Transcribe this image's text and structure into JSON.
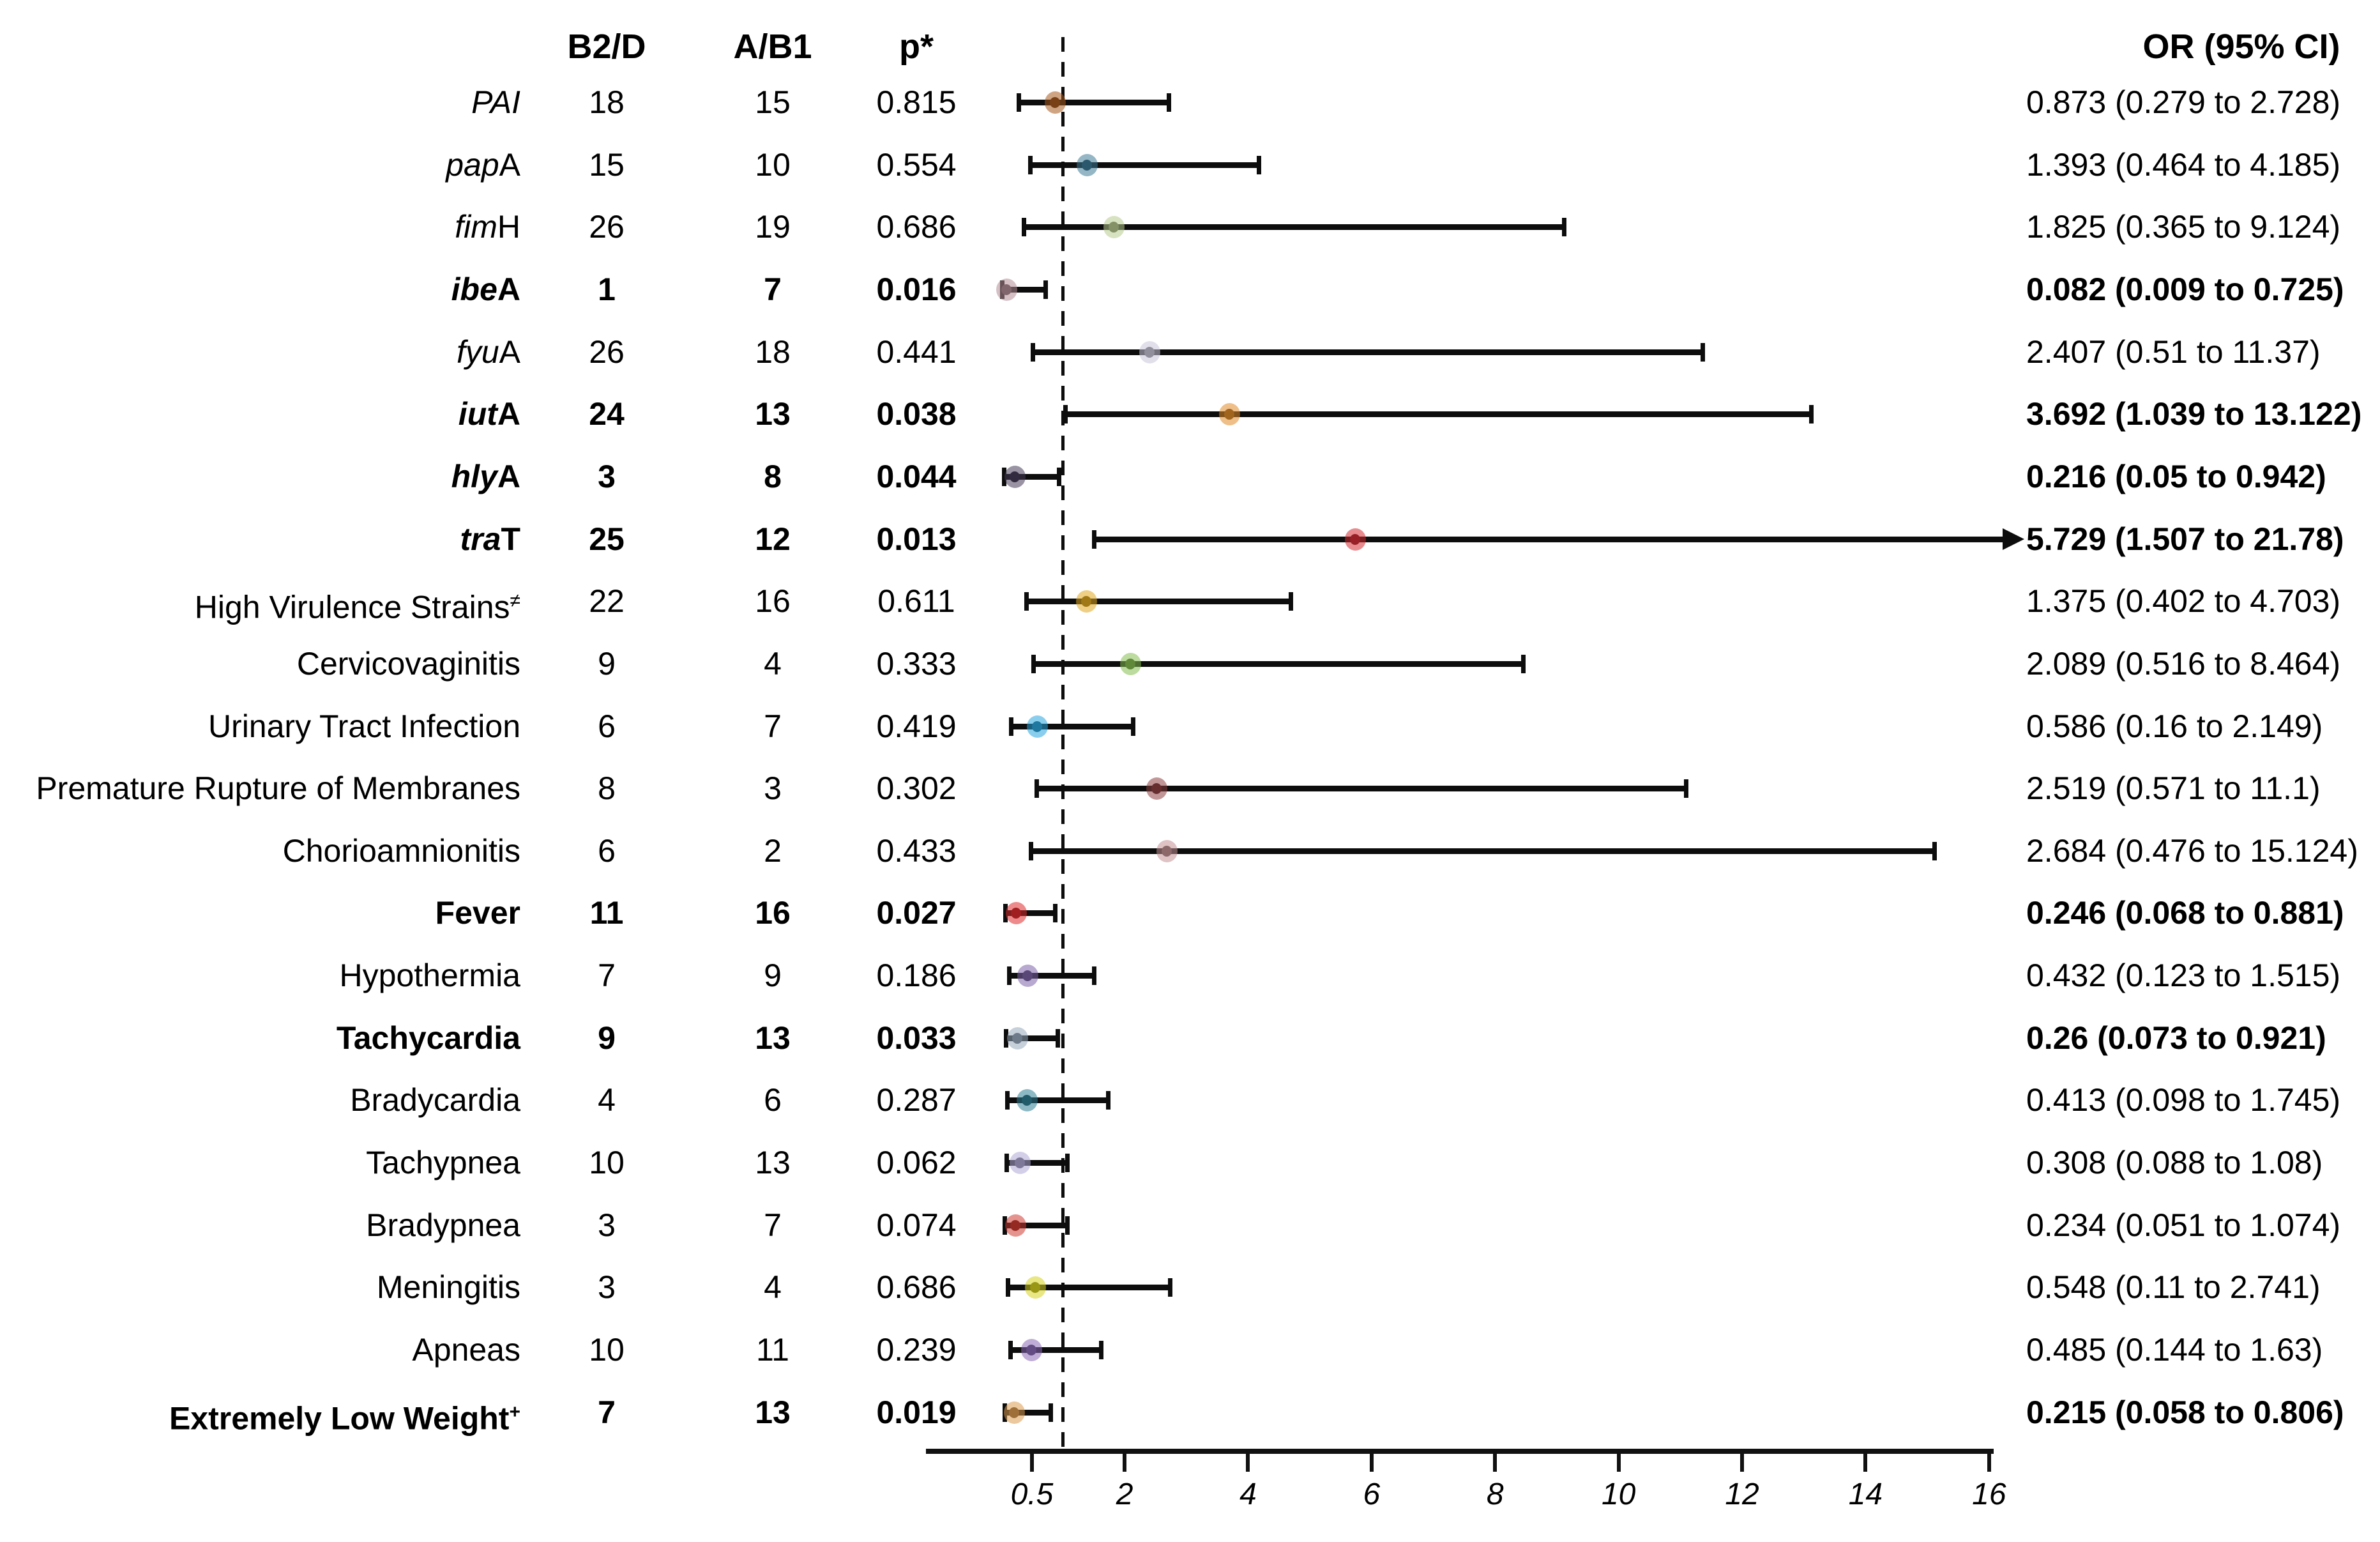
{
  "header": {
    "col_b2d": "B2/D",
    "col_ab1": "A/B1",
    "col_p": "p*",
    "col_or": "OR (95% CI)"
  },
  "axis": {
    "tick_values": [
      0.5,
      2,
      4,
      6,
      8,
      10,
      12,
      14,
      16
    ],
    "tick_labels": [
      "0.5",
      "2",
      "4",
      "6",
      "8",
      "10",
      "12",
      "14",
      "16"
    ],
    "ref_line_value": 1,
    "scale": "linear"
  },
  "chart_data": {
    "type": "forest",
    "columns": [
      "label",
      "B2/D",
      "A/B1",
      "p*",
      "OR (95% CI)"
    ],
    "x_axis": {
      "ticks": [
        0.5,
        2,
        4,
        6,
        8,
        10,
        12,
        14,
        16
      ],
      "reference_line": 1,
      "arrow_cutoff": 16
    },
    "rows": [
      {
        "label_italic": "PAI",
        "label_plain": "",
        "label_sup": "",
        "b2d": "18",
        "ab1": "15",
        "p": "0.815",
        "or": 0.873,
        "lo": 0.279,
        "hi": 2.728,
        "or_text": "0.873 (0.279 to 2.728)",
        "bold": false,
        "arrow": false,
        "color": "#A8591E"
      },
      {
        "label_italic": "pap",
        "label_plain": "A",
        "label_sup": "",
        "b2d": "15",
        "ab1": "10",
        "p": "0.554",
        "or": 1.393,
        "lo": 0.464,
        "hi": 4.185,
        "or_text": "1.393 (0.464 to 4.185)",
        "bold": false,
        "arrow": false,
        "color": "#3C7A96"
      },
      {
        "label_italic": "fim",
        "label_plain": "H",
        "label_sup": "",
        "b2d": "26",
        "ab1": "19",
        "p": "0.686",
        "or": 1.825,
        "lo": 0.365,
        "hi": 9.124,
        "or_text": "1.825 (0.365 to 9.124)",
        "bold": false,
        "arrow": false,
        "color": "#B7CA8E"
      },
      {
        "label_italic": "ibe",
        "label_plain": "A",
        "label_sup": "",
        "b2d": "1",
        "ab1": "7",
        "p": "0.016",
        "or": 0.082,
        "lo": 0.009,
        "hi": 0.725,
        "or_text": "0.082 (0.009 to 0.725)",
        "bold": true,
        "arrow": false,
        "color": "#B28E96"
      },
      {
        "label_italic": "fyu",
        "label_plain": "A",
        "label_sup": "",
        "b2d": "26",
        "ab1": "18",
        "p": "0.441",
        "or": 2.407,
        "lo": 0.51,
        "hi": 11.37,
        "or_text": "2.407 (0.51 to 11.37)",
        "bold": false,
        "arrow": false,
        "color": "#C9C6D8"
      },
      {
        "label_italic": "iut",
        "label_plain": "A",
        "label_sup": "",
        "b2d": "24",
        "ab1": "13",
        "p": "0.038",
        "or": 3.692,
        "lo": 1.039,
        "hi": 13.122,
        "or_text": "3.692 (1.039 to 13.122)",
        "bold": true,
        "arrow": false,
        "color": "#E08B28"
      },
      {
        "label_italic": "hly",
        "label_plain": "A",
        "label_sup": "",
        "b2d": "3",
        "ab1": "8",
        "p": "0.044",
        "or": 0.216,
        "lo": 0.05,
        "hi": 0.942,
        "or_text": "0.216 (0.05 to 0.942)",
        "bold": true,
        "arrow": false,
        "color": "#463B57"
      },
      {
        "label_italic": "tra",
        "label_plain": "T",
        "label_sup": "",
        "b2d": "25",
        "ab1": "12",
        "p": "0.013",
        "or": 5.729,
        "lo": 1.507,
        "hi": 21.78,
        "or_text": "5.729 (1.507 to 21.78)",
        "bold": true,
        "arrow": true,
        "color": "#D32B33"
      },
      {
        "label_italic": "",
        "label_plain": "High Virulence Strains",
        "label_sup": "≠",
        "b2d": "22",
        "ab1": "16",
        "p": "0.611",
        "or": 1.375,
        "lo": 0.402,
        "hi": 4.703,
        "or_text": "1.375 (0.402 to 4.703)",
        "bold": false,
        "arrow": false,
        "color": "#E0A71E"
      },
      {
        "label_italic": "",
        "label_plain": "Cervicovaginitis",
        "label_sup": "",
        "b2d": "9",
        "ab1": "4",
        "p": "0.333",
        "or": 2.089,
        "lo": 0.516,
        "hi": 8.464,
        "or_text": "2.089 (0.516 to 8.464)",
        "bold": false,
        "arrow": false,
        "color": "#85BE50"
      },
      {
        "label_italic": "",
        "label_plain": "Urinary Tract Infection",
        "label_sup": "",
        "b2d": "6",
        "ab1": "7",
        "p": "0.419",
        "or": 0.586,
        "lo": 0.16,
        "hi": 2.149,
        "or_text": "0.586 (0.16 to 2.149)",
        "bold": false,
        "arrow": false,
        "color": "#2AA6DE"
      },
      {
        "label_italic": "",
        "label_plain": "Premature Rupture of Membranes",
        "label_sup": "",
        "b2d": "8",
        "ab1": "3",
        "p": "0.302",
        "or": 2.519,
        "lo": 0.571,
        "hi": 11.1,
        "or_text": "2.519 (0.571 to 11.1)",
        "bold": false,
        "arrow": false,
        "color": "#8E4041"
      },
      {
        "label_italic": "",
        "label_plain": "Chorioamnionitis",
        "label_sup": "",
        "b2d": "6",
        "ab1": "2",
        "p": "0.433",
        "or": 2.684,
        "lo": 0.476,
        "hi": 15.124,
        "or_text": "2.684 (0.476 to 15.124)",
        "bold": false,
        "arrow": false,
        "color": "#C29093"
      },
      {
        "label_italic": "",
        "label_plain": "Fever",
        "label_sup": "",
        "b2d": "11",
        "ab1": "16",
        "p": "0.027",
        "or": 0.246,
        "lo": 0.068,
        "hi": 0.881,
        "or_text": "0.246 (0.068 to 0.881)",
        "bold": true,
        "arrow": false,
        "color": "#DF2A2C"
      },
      {
        "label_italic": "",
        "label_plain": "Hypothermia",
        "label_sup": "",
        "b2d": "7",
        "ab1": "9",
        "p": "0.186",
        "or": 0.432,
        "lo": 0.123,
        "hi": 1.515,
        "or_text": "0.432 (0.123 to 1.515)",
        "bold": false,
        "arrow": false,
        "color": "#7C62A7"
      },
      {
        "label_italic": "",
        "label_plain": "Tachycardia",
        "label_sup": "",
        "b2d": "9",
        "ab1": "13",
        "p": "0.033",
        "or": 0.26,
        "lo": 0.073,
        "hi": 0.921,
        "or_text": "0.26 (0.073 to 0.921)",
        "bold": true,
        "arrow": false,
        "color": "#97A9BE"
      },
      {
        "label_italic": "",
        "label_plain": "Bradycardia",
        "label_sup": "",
        "b2d": "4",
        "ab1": "6",
        "p": "0.287",
        "or": 0.413,
        "lo": 0.098,
        "hi": 1.745,
        "or_text": "0.413 (0.098 to 1.745)",
        "bold": false,
        "arrow": false,
        "color": "#2F7F93"
      },
      {
        "label_italic": "",
        "label_plain": "Tachypnea",
        "label_sup": "",
        "b2d": "10",
        "ab1": "13",
        "p": "0.062",
        "or": 0.308,
        "lo": 0.088,
        "hi": 1.08,
        "or_text": "0.308 (0.088 to 1.08)",
        "bold": false,
        "arrow": false,
        "color": "#B0A8D5"
      },
      {
        "label_italic": "",
        "label_plain": "Bradypnea",
        "label_sup": "",
        "b2d": "3",
        "ab1": "7",
        "p": "0.074",
        "or": 0.234,
        "lo": 0.051,
        "hi": 1.074,
        "or_text": "0.234 (0.051 to 1.074)",
        "bold": false,
        "arrow": false,
        "color": "#CF3A31"
      },
      {
        "label_italic": "",
        "label_plain": "Meningitis",
        "label_sup": "",
        "b2d": "3",
        "ab1": "4",
        "p": "0.686",
        "or": 0.548,
        "lo": 0.11,
        "hi": 2.741,
        "or_text": "0.548 (0.11 to 2.741)",
        "bold": false,
        "arrow": false,
        "color": "#D7D21F"
      },
      {
        "label_italic": "",
        "label_plain": "Apneas",
        "label_sup": "",
        "b2d": "10",
        "ab1": "11",
        "p": "0.239",
        "or": 0.485,
        "lo": 0.144,
        "hi": 1.63,
        "or_text": "0.485 (0.144 to 1.63)",
        "bold": false,
        "arrow": false,
        "color": "#8A6AB6"
      },
      {
        "label_italic": "",
        "label_plain": "Extremely Low Weight",
        "label_sup": "+",
        "b2d": "7",
        "ab1": "13",
        "p": "0.019",
        "or": 0.215,
        "lo": 0.058,
        "hi": 0.806,
        "or_text": "0.215 (0.058 to 0.806)",
        "bold": true,
        "arrow": false,
        "color": "#DC9A4F"
      }
    ]
  }
}
